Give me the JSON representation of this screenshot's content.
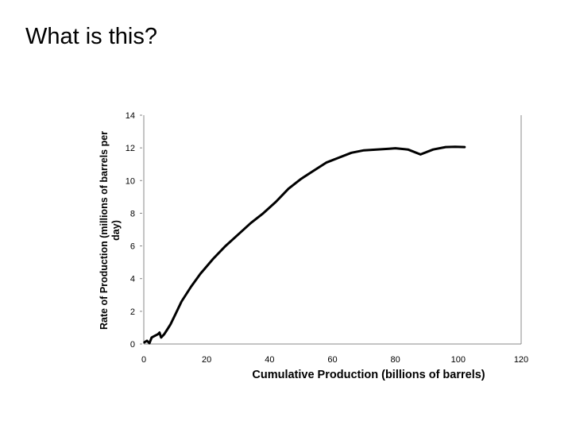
{
  "slide": {
    "title": "What is this?"
  },
  "chart_data": {
    "type": "line",
    "title": "",
    "xlabel": "Cumulative Production (billions of barrels)",
    "ylabel_line1": "Rate of Production (millions of barrels per",
    "ylabel_line2": "day)",
    "xlim": [
      0,
      120
    ],
    "ylim": [
      0,
      14
    ],
    "x_ticks": [
      0,
      20,
      40,
      60,
      80,
      100,
      120
    ],
    "y_ticks": [
      0,
      2,
      4,
      6,
      8,
      10,
      12,
      14
    ],
    "grid": false,
    "line_color": "#000000",
    "series": [
      {
        "x": [
          0.2,
          1.0,
          1.8,
          2.5,
          3.5,
          4.5,
          5.0,
          5.5,
          6.5,
          7.5,
          8.5,
          10,
          12,
          15,
          18,
          22,
          26,
          30,
          34,
          38,
          42,
          46,
          50,
          54,
          58,
          62,
          66,
          70,
          74,
          78,
          80,
          84,
          88,
          92,
          96,
          99,
          102
        ],
        "y": [
          0.1,
          0.2,
          0.05,
          0.4,
          0.5,
          0.6,
          0.7,
          0.4,
          0.6,
          0.9,
          1.2,
          1.8,
          2.6,
          3.5,
          4.3,
          5.2,
          6.0,
          6.7,
          7.4,
          8.0,
          8.7,
          9.5,
          10.1,
          10.6,
          11.1,
          11.4,
          11.7,
          11.85,
          11.9,
          11.95,
          11.98,
          11.9,
          11.6,
          11.9,
          12.05,
          12.07,
          12.05
        ]
      }
    ]
  }
}
